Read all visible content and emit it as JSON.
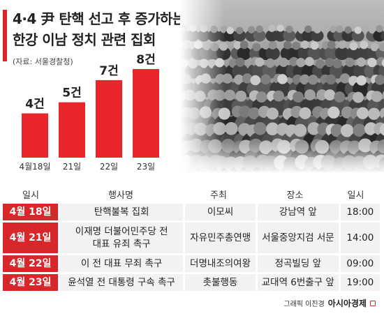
{
  "header": {
    "title_line1": "4·4 尹 탄핵 선고 후 증가하는",
    "title_line2": "한강 이남 정치 관련 집회",
    "source": "(자료: 서울경찰청)"
  },
  "chart_data": {
    "type": "bar",
    "categories": [
      "4월18일",
      "21일",
      "22일",
      "23일"
    ],
    "values": [
      4,
      5,
      7,
      8
    ],
    "value_labels": [
      "4건",
      "5건",
      "7건",
      "8건"
    ],
    "title": "4·4 尹 탄핵 선고 후 증가하는 한강 이남 정치 관련 집회",
    "ylim": [
      0,
      8
    ],
    "grid": false,
    "bar_color": "#e8262b"
  },
  "table": {
    "headers": [
      "일시",
      "행사명",
      "주최",
      "장소",
      "일시"
    ],
    "rows": [
      {
        "date": "4월 18일",
        "event": "탄핵불복 집회",
        "host": "이모씨",
        "place": "강남역 앞",
        "time": "18:00"
      },
      {
        "date": "4월 21일",
        "event": "이재명 더불어민주당 전 대표 유죄 촉구",
        "host": "자유민주총연맹",
        "place": "서울중앙지검 서문",
        "time": "14:00"
      },
      {
        "date": "4월 22일",
        "event": "이 전 대표 무죄 촉구",
        "host": "더명내조의여왕",
        "place": "정곡빌딩 앞",
        "time": "09:00"
      },
      {
        "date": "4월 23일",
        "event": "윤석열 전 대통령 구속 촉구",
        "host": "촛불행동",
        "place": "교대역 6번출구 앞",
        "time": "19:00"
      }
    ]
  },
  "footer": {
    "credit": "그래픽 이진경",
    "brand": "아시아경제"
  },
  "colors": {
    "accent": "#d7272b",
    "cell_bg": "#f2f2f2"
  }
}
